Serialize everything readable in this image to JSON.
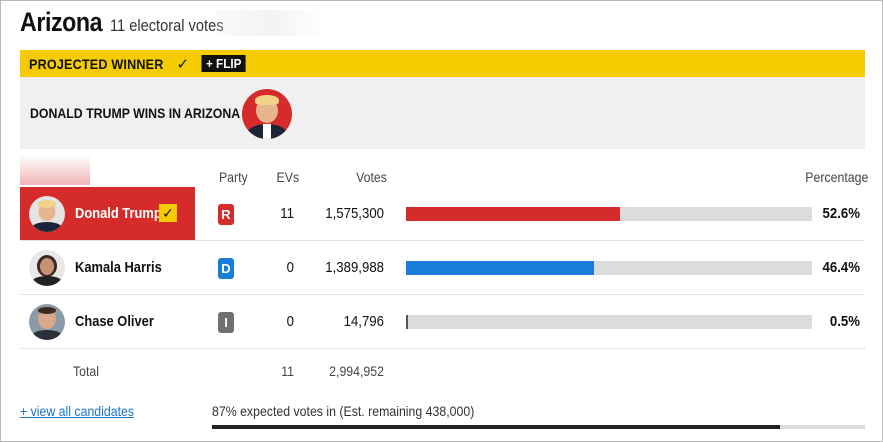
{
  "header": {
    "state": "Arizona",
    "electoral_votes": "11 electoral votes"
  },
  "banner": {
    "projected_winner": "PROJECTED WINNER",
    "check": "✓",
    "flip": "+ FLIP"
  },
  "winner": {
    "text": "DONALD TRUMP WINS IN ARIZONA"
  },
  "columns": {
    "party": "Party",
    "evs": "EVs",
    "votes": "Votes",
    "percentage": "Percentage"
  },
  "candidates": [
    {
      "name": "Donald Trump",
      "party": "R",
      "party_color": "#d62b2b",
      "evs": "11",
      "votes": "1,575,300",
      "pct": "52.6%",
      "pct_value": 52.6,
      "bar_color": "#d62b2b",
      "winner": true
    },
    {
      "name": "Kamala Harris",
      "party": "D",
      "party_color": "#1a7ed8",
      "evs": "0",
      "votes": "1,389,988",
      "pct": "46.4%",
      "pct_value": 46.4,
      "bar_color": "#1a7ed8",
      "winner": false
    },
    {
      "name": "Chase Oliver",
      "party": "I",
      "party_color": "#707070",
      "evs": "0",
      "votes": "14,796",
      "pct": "0.5%",
      "pct_value": 0.5,
      "bar_color": "#555555",
      "winner": false
    }
  ],
  "total": {
    "label": "Total",
    "evs": "11",
    "votes": "2,994,952"
  },
  "footer": {
    "view_all": "+ view all candidates",
    "expected": "87% expected votes in (Est. remaining 438,000)",
    "expected_pct": 87
  }
}
